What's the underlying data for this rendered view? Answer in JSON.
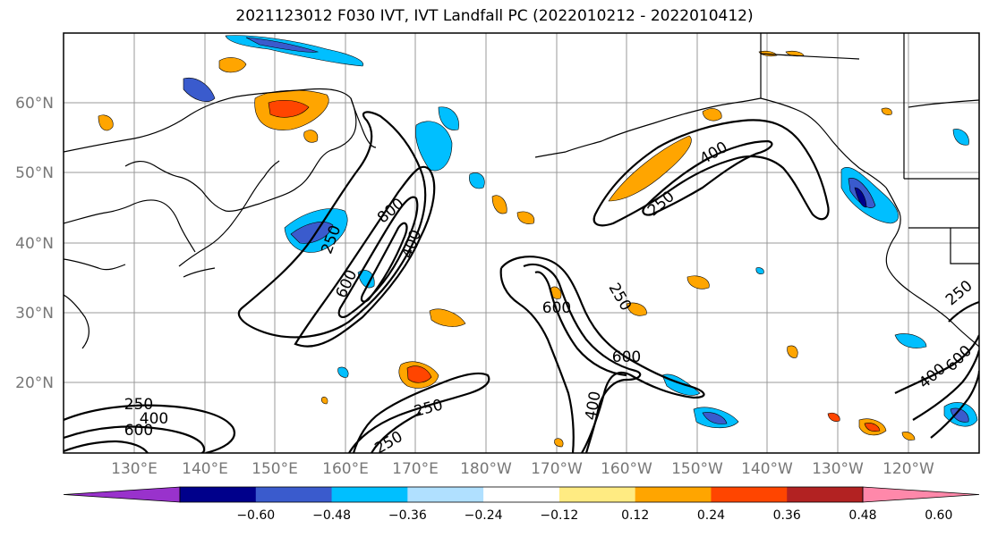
{
  "title": "2021123012 F030 IVT, IVT Landfall PC (2022010212 - 2022010412)",
  "map": {
    "lat_labels": [
      "60°N",
      "50°N",
      "40°N",
      "30°N",
      "20°N"
    ],
    "lon_labels": [
      "130°E",
      "140°E",
      "150°E",
      "160°E",
      "170°E",
      "180°W",
      "170°W",
      "160°W",
      "150°W",
      "140°W",
      "130°W",
      "120°W"
    ],
    "contour_labels": [
      "250",
      "400",
      "600",
      "800",
      "400",
      "250",
      "600",
      "600",
      "250",
      "600",
      "400",
      "250",
      "400",
      "250",
      "400",
      "600",
      "250",
      "250",
      "400",
      "600",
      "400",
      "600",
      "250"
    ]
  },
  "colorbar": {
    "colors": [
      "#9932cc",
      "#00008b",
      "#3a5bcd",
      "#00bfff",
      "#b0e0ff",
      "#ffffff",
      "#ffeb82",
      "#ffa500",
      "#ff4500",
      "#b22222",
      "#ff88aa"
    ],
    "tick_labels": [
      "−0.60",
      "−0.48",
      "−0.36",
      "−0.24",
      "−0.12",
      "0.12",
      "0.24",
      "0.36",
      "0.48",
      "0.60"
    ]
  }
}
